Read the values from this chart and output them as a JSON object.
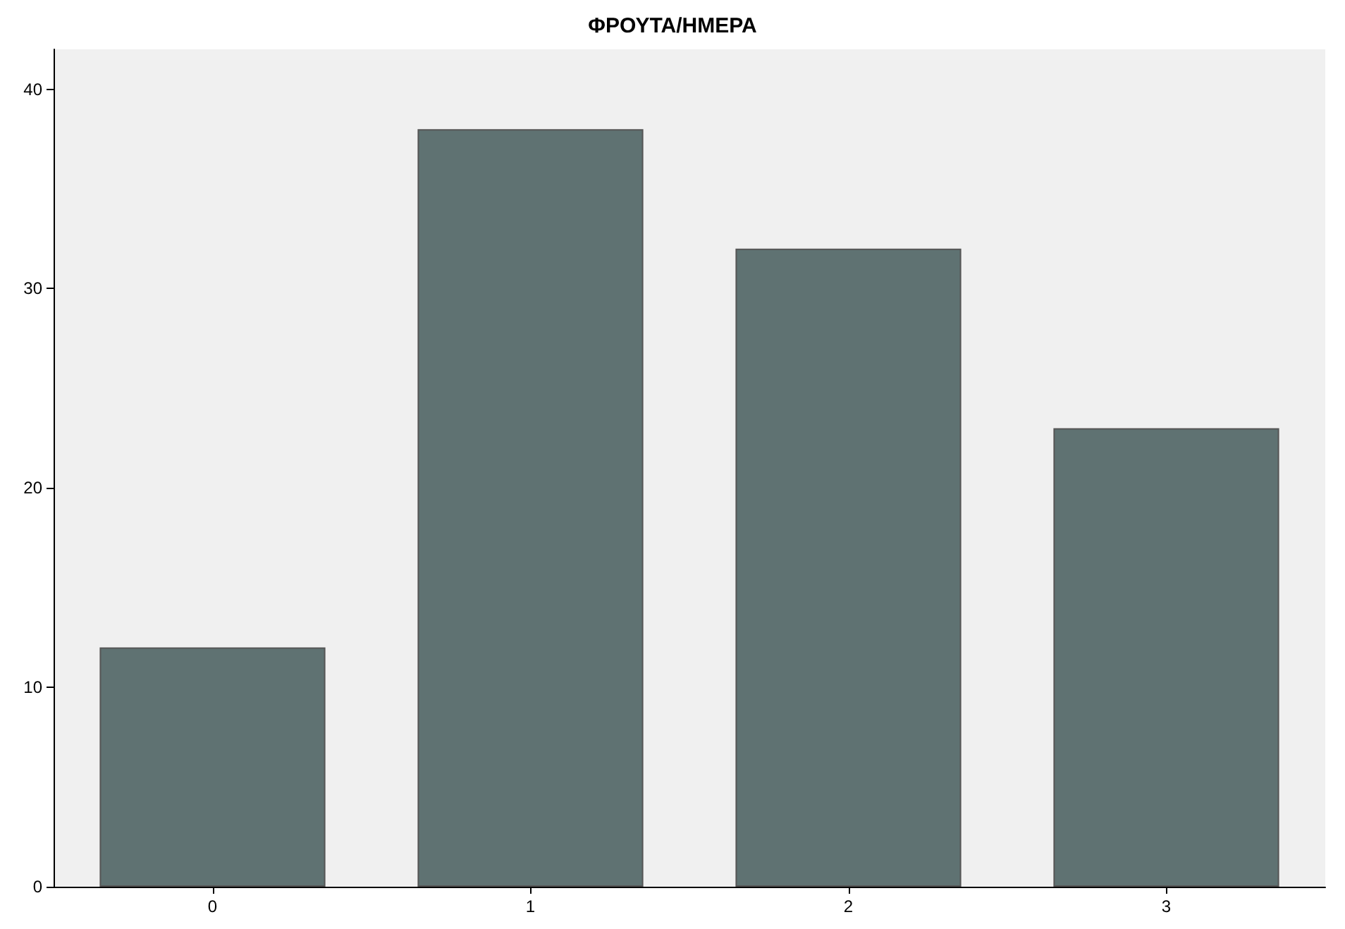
{
  "chart_data": {
    "type": "bar",
    "title": "ΦΡΟΥΤΑ/ΗΜΕΡΑ",
    "categories": [
      "0",
      "1",
      "2",
      "3"
    ],
    "values": [
      12,
      38,
      32,
      23
    ],
    "color": "#5f7272",
    "ylim": [
      0,
      42
    ],
    "yticks": [
      0,
      10,
      20,
      30,
      40
    ],
    "grid": false
  }
}
